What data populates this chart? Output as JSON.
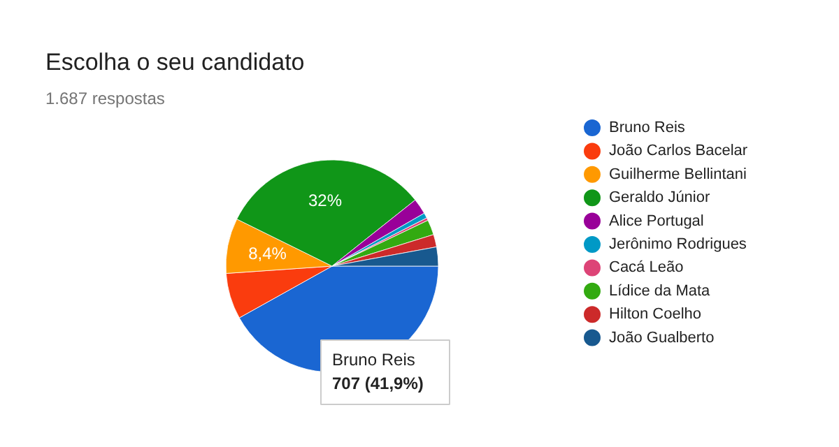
{
  "chart_data": {
    "type": "pie",
    "title": "Escolha o seu candidato",
    "subtitle": "1.687 respostas",
    "categories": [
      "Bruno Reis",
      "João Carlos Bacelar",
      "Guilherme Bellintani",
      "Geraldo Júnior",
      "Alice Portugal",
      "Jerônimo Rodrigues",
      "Cacá Leão",
      "Lídice da Mata",
      "Hilton Coelho",
      "João Gualberto"
    ],
    "values": [
      41.9,
      7,
      8.4,
      32,
      2.4,
      0.8,
      0.4,
      2.3,
      1.9,
      2.9
    ],
    "colors": [
      "#1a66d2",
      "#fa3c0e",
      "#ff9900",
      "#109618",
      "#990099",
      "#0099c6",
      "#dd4477",
      "#33aa11",
      "#cc2a2a",
      "#18598f"
    ],
    "value_labels": [
      null,
      null,
      "8,4%",
      "32%",
      null,
      null,
      null,
      null,
      null,
      null
    ],
    "annotations": [
      "Bruno Reis\n707 (41,9%)"
    ],
    "legend": "right"
  }
}
